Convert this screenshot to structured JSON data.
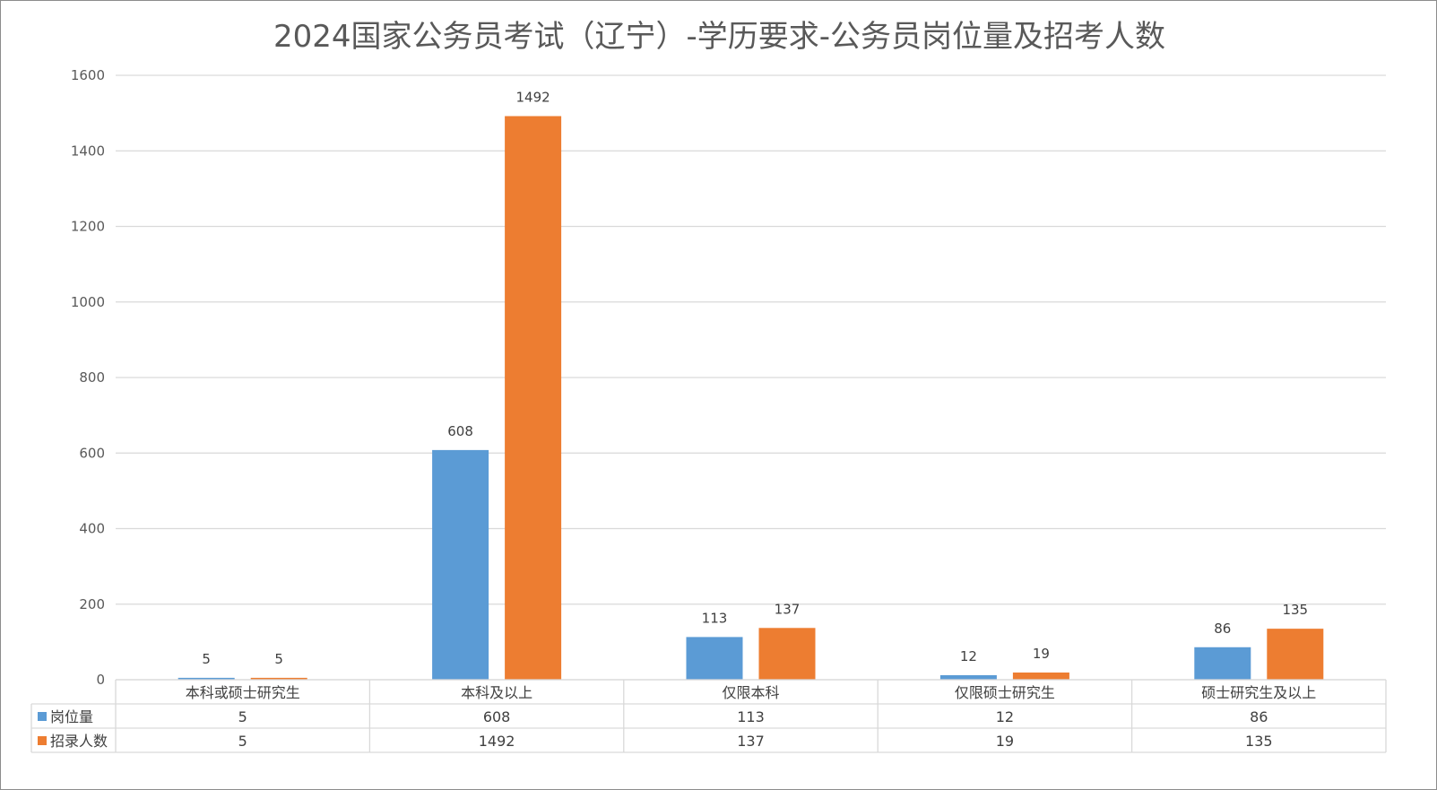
{
  "chart_data": {
    "type": "bar",
    "title": "2024国家公务员考试（辽宁）-学历要求-公务员岗位量及招考人数",
    "categories": [
      "本科或硕士研究生",
      "本科及以上",
      "仅限本科",
      "仅限硕士研究生",
      "硕士研究生及以上"
    ],
    "series": [
      {
        "name": "岗位量",
        "color": "#5b9bd5",
        "values": [
          5,
          608,
          113,
          12,
          86
        ]
      },
      {
        "name": "招录人数",
        "color": "#ed7d31",
        "values": [
          5,
          1492,
          137,
          19,
          135
        ]
      }
    ],
    "ylim": [
      0,
      1600
    ],
    "yticks": [
      0,
      200,
      400,
      600,
      800,
      1000,
      1200,
      1400,
      1600
    ],
    "grid": true,
    "data_labels": true,
    "legend": "data-table"
  }
}
